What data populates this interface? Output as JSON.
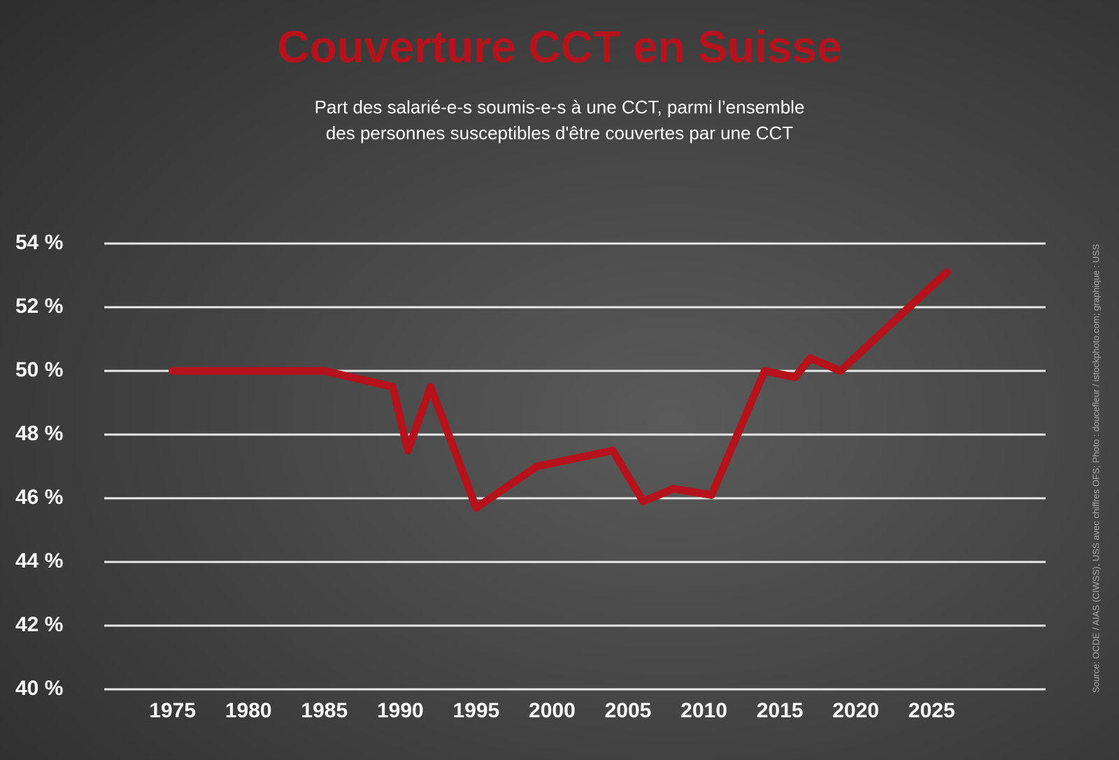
{
  "chart_data": {
    "type": "line",
    "title": "Couverture CCT en Suisse",
    "subtitle": [
      "Part des salarié-e-s soumis-e-s à une CCT, parmi l’ensemble",
      "des personnes susceptibles d'être couvertes par une CCT"
    ],
    "source": "Source: OCDE / AIAS (CIWSS), USS avec chiffres OFS;  Photo : doucefleur / istockphoto.com; graphique : USS",
    "x": [
      1975,
      1985,
      1989.5,
      1990.5,
      1992,
      1995,
      1999,
      2004,
      2006,
      2008,
      2010.5,
      2014,
      2016,
      2017,
      2019,
      2026
    ],
    "series": [
      {
        "name": "Couverture CCT",
        "color": "#b5121b",
        "values": [
          50,
          50,
          49.5,
          47.5,
          49.5,
          45.7,
          47,
          47.5,
          45.9,
          46.3,
          46.1,
          50,
          49.8,
          50.4,
          50,
          53.1
        ]
      }
    ],
    "xlim": [
      1970.5,
      2032.5
    ],
    "xticks": [
      1975,
      1980,
      1985,
      1990,
      1995,
      2000,
      2005,
      2010,
      2015,
      2020,
      2025
    ],
    "ylim": [
      40,
      54
    ],
    "yticks": [
      {
        "value": 40,
        "label": "40 %"
      },
      {
        "value": 42,
        "label": "42 %"
      },
      {
        "value": 44,
        "label": "44 %"
      },
      {
        "value": 46,
        "label": "46 %"
      },
      {
        "value": 48,
        "label": "48 %"
      },
      {
        "value": 50,
        "label": "50 %"
      },
      {
        "value": 52,
        "label": "52 %"
      },
      {
        "value": 54,
        "label": "54 %"
      }
    ],
    "grid": true
  }
}
